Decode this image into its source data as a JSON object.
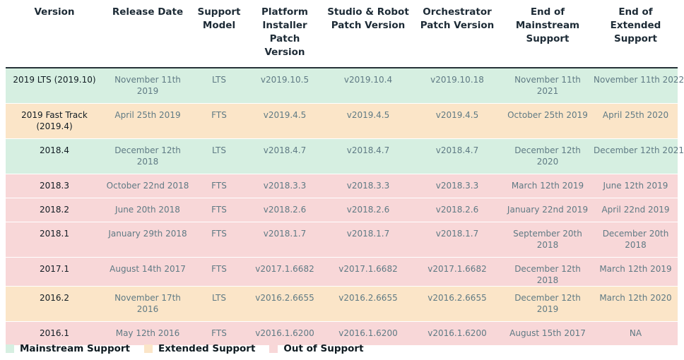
{
  "colors": {
    "mainstream": "#d6efe1",
    "extended": "#fbe5c8",
    "out": "#f8d7d8"
  },
  "table": {
    "headers": [
      "Version",
      "Release Date",
      "Support Model",
      "Platform Installer Patch Version",
      "Studio & Robot Patch Version",
      "Orchestrator Patch Version",
      "End of Mainstream Support",
      "End of Extended Support"
    ],
    "rows": [
      {
        "status": "mainstream",
        "cells": [
          "2019 LTS (2019.10)",
          "November 11th 2019",
          "LTS",
          "v2019.10.5",
          "v2019.10.4",
          "v2019.10.18",
          "November 11th 2021",
          "November 11th 2022"
        ]
      },
      {
        "status": "extended",
        "cells": [
          "2019 Fast Track (2019.4)",
          "April 25th 2019",
          "FTS",
          "v2019.4.5",
          "v2019.4.5",
          "v2019.4.5",
          "October 25th 2019",
          "April 25th 2020"
        ]
      },
      {
        "status": "mainstream",
        "cells": [
          "2018.4",
          "December 12th 2018",
          "LTS",
          "v2018.4.7",
          "v2018.4.7",
          "v2018.4.7",
          "December 12th 2020",
          "December 12th 2021"
        ]
      },
      {
        "status": "out",
        "cells": [
          "2018.3",
          "October 22nd 2018",
          "FTS",
          "v2018.3.3",
          "v2018.3.3",
          "v2018.3.3",
          "March 12th 2019",
          "June 12th 2019"
        ]
      },
      {
        "status": "out",
        "cells": [
          "2018.2",
          "June 20th 2018",
          "FTS",
          "v2018.2.6",
          "v2018.2.6",
          "v2018.2.6",
          "January 22nd 2019",
          "April 22nd 2019"
        ]
      },
      {
        "status": "out",
        "cells": [
          "2018.1",
          "January 29th 2018",
          "FTS",
          "v2018.1.7",
          "v2018.1.7",
          "v2018.1.7",
          "September 20th 2018",
          "December 20th 2018"
        ]
      },
      {
        "status": "out",
        "cells": [
          "2017.1",
          "August 14th 2017",
          "FTS",
          "v2017.1.6682",
          "v2017.1.6682",
          "v2017.1.6682",
          "December 12th 2018",
          "March 12th 2019"
        ]
      },
      {
        "status": "extended",
        "cells": [
          "2016.2",
          "November 17th 2016",
          "LTS",
          "v2016.2.6655",
          "v2016.2.6655",
          "v2016.2.6655",
          "December 12th 2019",
          "March 12th 2020"
        ]
      },
      {
        "status": "out",
        "cells": [
          "2016.1",
          "May 12th 2016",
          "FTS",
          "v2016.1.6200",
          "v2016.1.6200",
          "v2016.1.6200",
          "August 15th 2017",
          "NA"
        ]
      }
    ]
  },
  "legend": {
    "mainstream_label": "Mainstream Support",
    "extended_label": "Extended Support",
    "out_label": "Out of Support"
  }
}
